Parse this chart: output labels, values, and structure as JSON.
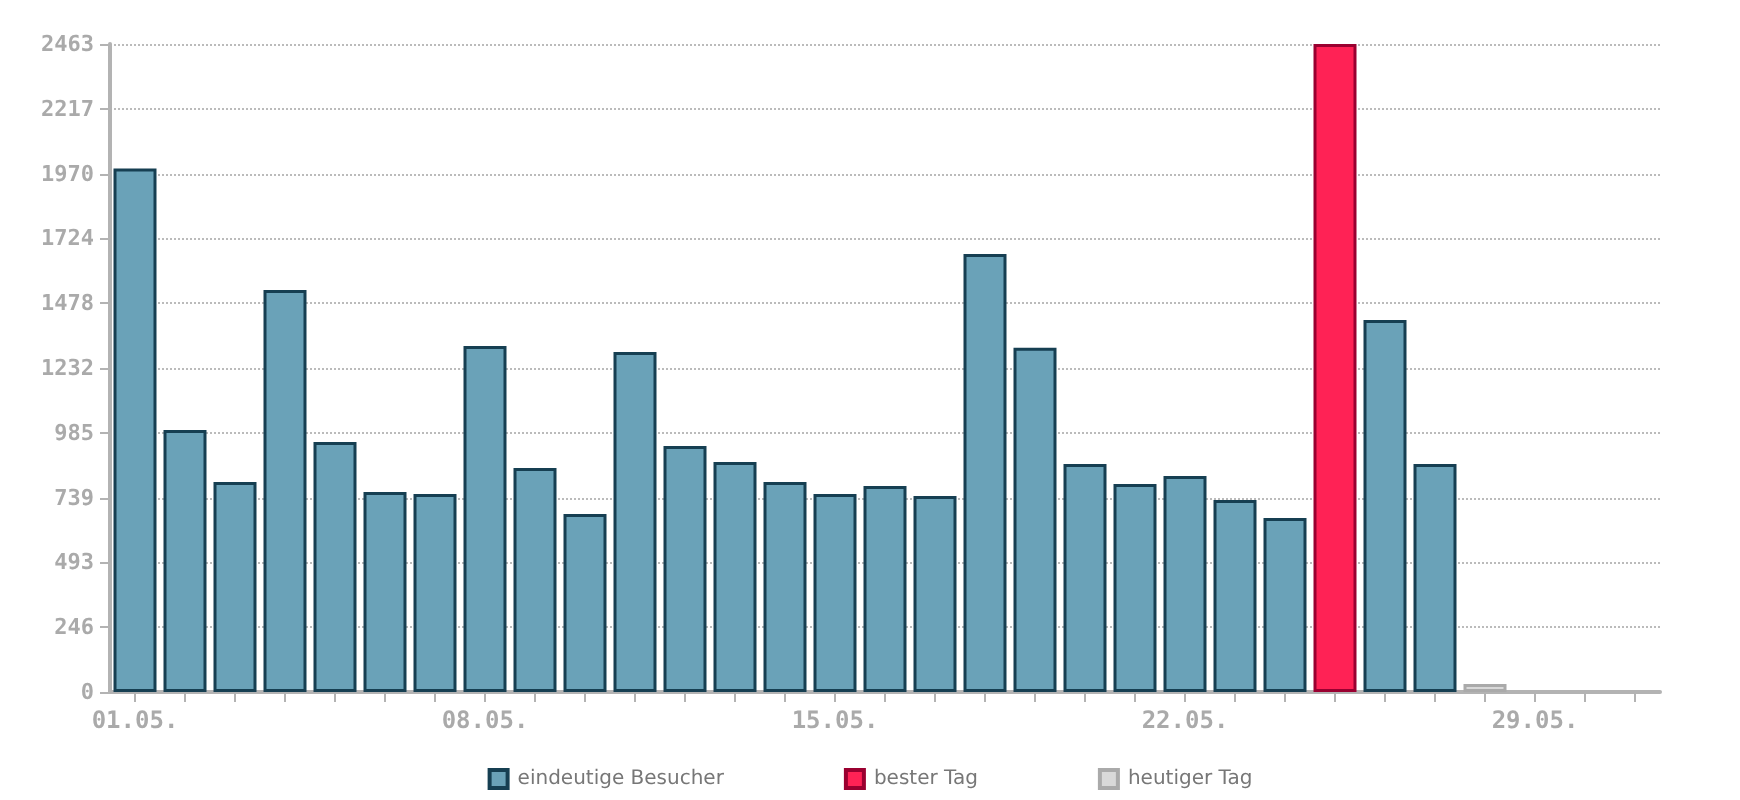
{
  "chart_data": {
    "type": "bar",
    "stacked": true,
    "categories": [
      "01.05.",
      null,
      null,
      null,
      null,
      null,
      null,
      "08.05.",
      null,
      null,
      null,
      null,
      null,
      null,
      "15.05.",
      null,
      null,
      null,
      null,
      null,
      null,
      "22.05.",
      null,
      null,
      null,
      null,
      null,
      null,
      "29.05.",
      null,
      null
    ],
    "series": [
      {
        "name": "eindeutige Besucher",
        "color": "#6aa2b8",
        "values": [
          1990,
          996,
          798,
          1528,
          950,
          760,
          753,
          1315,
          851,
          677,
          1292,
          935,
          874,
          798,
          753,
          783,
          745,
          1665,
          1308,
          867,
          791,
          821,
          730,
          661,
          null,
          1414,
          867,
          null,
          null,
          null,
          null
        ]
      },
      {
        "name": "bester Tag",
        "color": "#ff2255",
        "values": [
          null,
          null,
          null,
          null,
          null,
          null,
          null,
          null,
          null,
          null,
          null,
          null,
          null,
          null,
          null,
          null,
          null,
          null,
          null,
          null,
          null,
          null,
          null,
          null,
          2463,
          null,
          null,
          null,
          null,
          null,
          null
        ]
      },
      {
        "name": "heutiger Tag",
        "color": "#d9d9d9",
        "values": [
          null,
          null,
          null,
          null,
          null,
          null,
          null,
          null,
          null,
          null,
          null,
          null,
          null,
          null,
          null,
          null,
          null,
          null,
          null,
          null,
          null,
          null,
          null,
          null,
          null,
          null,
          null,
          30,
          null,
          null,
          null
        ]
      }
    ],
    "ylim": [
      0,
      2463
    ],
    "yticks": [
      0,
      246,
      493,
      739,
      985,
      1232,
      1478,
      1724,
      1970,
      2217,
      2463
    ],
    "grid": "y",
    "legend": "bottom"
  }
}
